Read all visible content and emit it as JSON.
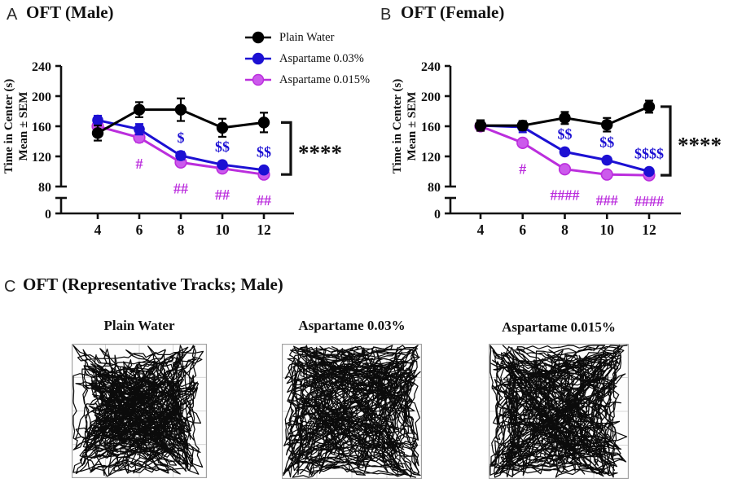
{
  "figure": {
    "panels": [
      {
        "letter": "A",
        "title": "OFT (Male)"
      },
      {
        "letter": "B",
        "title": "OFT (Female)"
      },
      {
        "letter": "C",
        "title": "OFT (Representative Tracks; Male)"
      }
    ]
  },
  "legend": {
    "items": [
      {
        "label": "Plain Water",
        "color": "#000000"
      },
      {
        "label": "Aspartame 0.03%",
        "color": "#1c10d3"
      },
      {
        "label": "Aspartame 0.015%",
        "color": "#bb2edd",
        "marker_fill": "#cc5aec"
      }
    ]
  },
  "chart_data": [
    {
      "type": "line",
      "panel": "A",
      "title": "OFT (Male)",
      "x": [
        4,
        6,
        8,
        10,
        12
      ],
      "xlabel": "",
      "ylabel_line1": "Time in Center (s)",
      "ylabel_line2": "Mean ± SEM",
      "yticks": [
        0,
        80,
        120,
        160,
        200,
        240
      ],
      "ylim": [
        0,
        240
      ],
      "axis_break": true,
      "grid": false,
      "legend_position": "top-right",
      "series": [
        {
          "name": "Plain Water",
          "color": "#000000",
          "values": [
            151,
            182,
            182,
            158,
            165
          ],
          "sem": [
            10,
            10,
            15,
            12,
            13
          ]
        },
        {
          "name": "Aspartame 0.03%",
          "color": "#1c10d3",
          "values": [
            168,
            156,
            121,
            109,
            102
          ],
          "sem": [
            6,
            7,
            5,
            4,
            4
          ]
        },
        {
          "name": "Aspartame 0.015%",
          "color": "#bb2edd",
          "marker_fill": "#cc5aec",
          "values": [
            160,
            145,
            112,
            104,
            96
          ],
          "sem": [
            5,
            6,
            4,
            4,
            4
          ]
        }
      ],
      "annotations": [
        {
          "x": 6,
          "text": "#",
          "series": 2,
          "position": "below"
        },
        {
          "x": 8,
          "text": "$",
          "series": 1,
          "position": "above"
        },
        {
          "x": 8,
          "text": "##",
          "series": 2,
          "position": "below"
        },
        {
          "x": 10,
          "text": "$$",
          "series": 1,
          "position": "above"
        },
        {
          "x": 10,
          "text": "##",
          "series": 2,
          "position": "below"
        },
        {
          "x": 12,
          "text": "$$",
          "series": 1,
          "position": "above"
        },
        {
          "x": 12,
          "text": "##",
          "series": 2,
          "position": "below"
        }
      ],
      "bracket_label": "****"
    },
    {
      "type": "line",
      "panel": "B",
      "title": "OFT (Female)",
      "x": [
        4,
        6,
        8,
        10,
        12
      ],
      "xlabel": "",
      "ylabel_line1": "Time in Center (s)",
      "ylabel_line2": "Mean ± SEM",
      "yticks": [
        0,
        80,
        120,
        160,
        200,
        240
      ],
      "ylim": [
        0,
        240
      ],
      "axis_break": true,
      "grid": false,
      "series": [
        {
          "name": "Plain Water",
          "color": "#000000",
          "values": [
            161,
            161,
            171,
            162,
            186
          ],
          "sem": [
            7,
            6,
            8,
            9,
            8
          ]
        },
        {
          "name": "Aspartame 0.03%",
          "color": "#1c10d3",
          "values": [
            161,
            159,
            126,
            115,
            100
          ],
          "sem": [
            6,
            7,
            4,
            4,
            4
          ]
        },
        {
          "name": "Aspartame 0.015%",
          "color": "#bb2edd",
          "marker_fill": "#cc5aec",
          "values": [
            160,
            138,
            103,
            96,
            95
          ],
          "sem": [
            4,
            4,
            4,
            3,
            3
          ]
        }
      ],
      "annotations": [
        {
          "x": 6,
          "text": "#",
          "series": 2,
          "position": "below"
        },
        {
          "x": 8,
          "text": "$$",
          "series": 1,
          "position": "above"
        },
        {
          "x": 8,
          "text": "####",
          "series": 2,
          "position": "below"
        },
        {
          "x": 10,
          "text": "$$",
          "series": 1,
          "position": "above"
        },
        {
          "x": 10,
          "text": "###",
          "series": 2,
          "position": "below"
        },
        {
          "x": 12,
          "text": "$$$$",
          "series": 1,
          "position": "above"
        },
        {
          "x": 12,
          "text": "####",
          "series": 2,
          "position": "below"
        }
      ],
      "bracket_label": "****"
    }
  ],
  "tracks": {
    "panel": "C",
    "items": [
      {
        "label": "Plain Water",
        "pattern": "uniform-dense"
      },
      {
        "label": "Aspartame 0.03%",
        "pattern": "edge-biased"
      },
      {
        "label": "Aspartame 0.015%",
        "pattern": "edge-biased"
      }
    ]
  }
}
